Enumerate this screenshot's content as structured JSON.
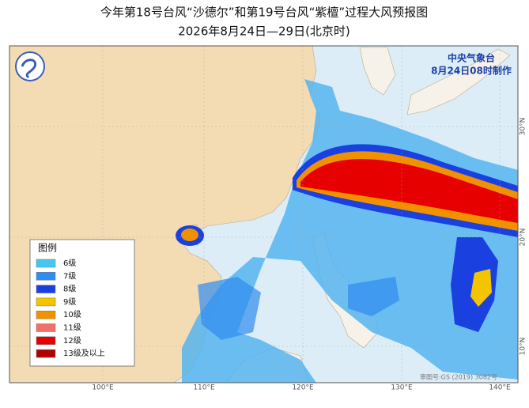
{
  "header": {
    "title": "今年第18号台风“沙德尔”和第19号台风“紫檀”过程大风预报图",
    "subtitle": "2026年8月24日—29日(北京时)"
  },
  "agency": {
    "name": "中央气象台",
    "issued": "8月24日08时制作"
  },
  "legend": {
    "title": "图例",
    "items": [
      {
        "label": "6级",
        "color": "#44c8f2"
      },
      {
        "label": "7级",
        "color": "#2f8cf0"
      },
      {
        "label": "8级",
        "color": "#1a40e0"
      },
      {
        "label": "9级",
        "color": "#f5c400"
      },
      {
        "label": "10级",
        "color": "#f29100"
      },
      {
        "label": "11级",
        "color": "#f46f6a"
      },
      {
        "label": "12级",
        "color": "#e60000"
      },
      {
        "label": "13级及以上",
        "color": "#b00000"
      }
    ]
  },
  "axes": {
    "longitudes": [
      "100°E",
      "110°E",
      "120°E",
      "130°E",
      "140°E"
    ],
    "latitudes": [
      "30°N",
      "20°N",
      "10°N"
    ]
  },
  "footer": {
    "review_number": "审图号:GS (2019) 3082号"
  }
}
